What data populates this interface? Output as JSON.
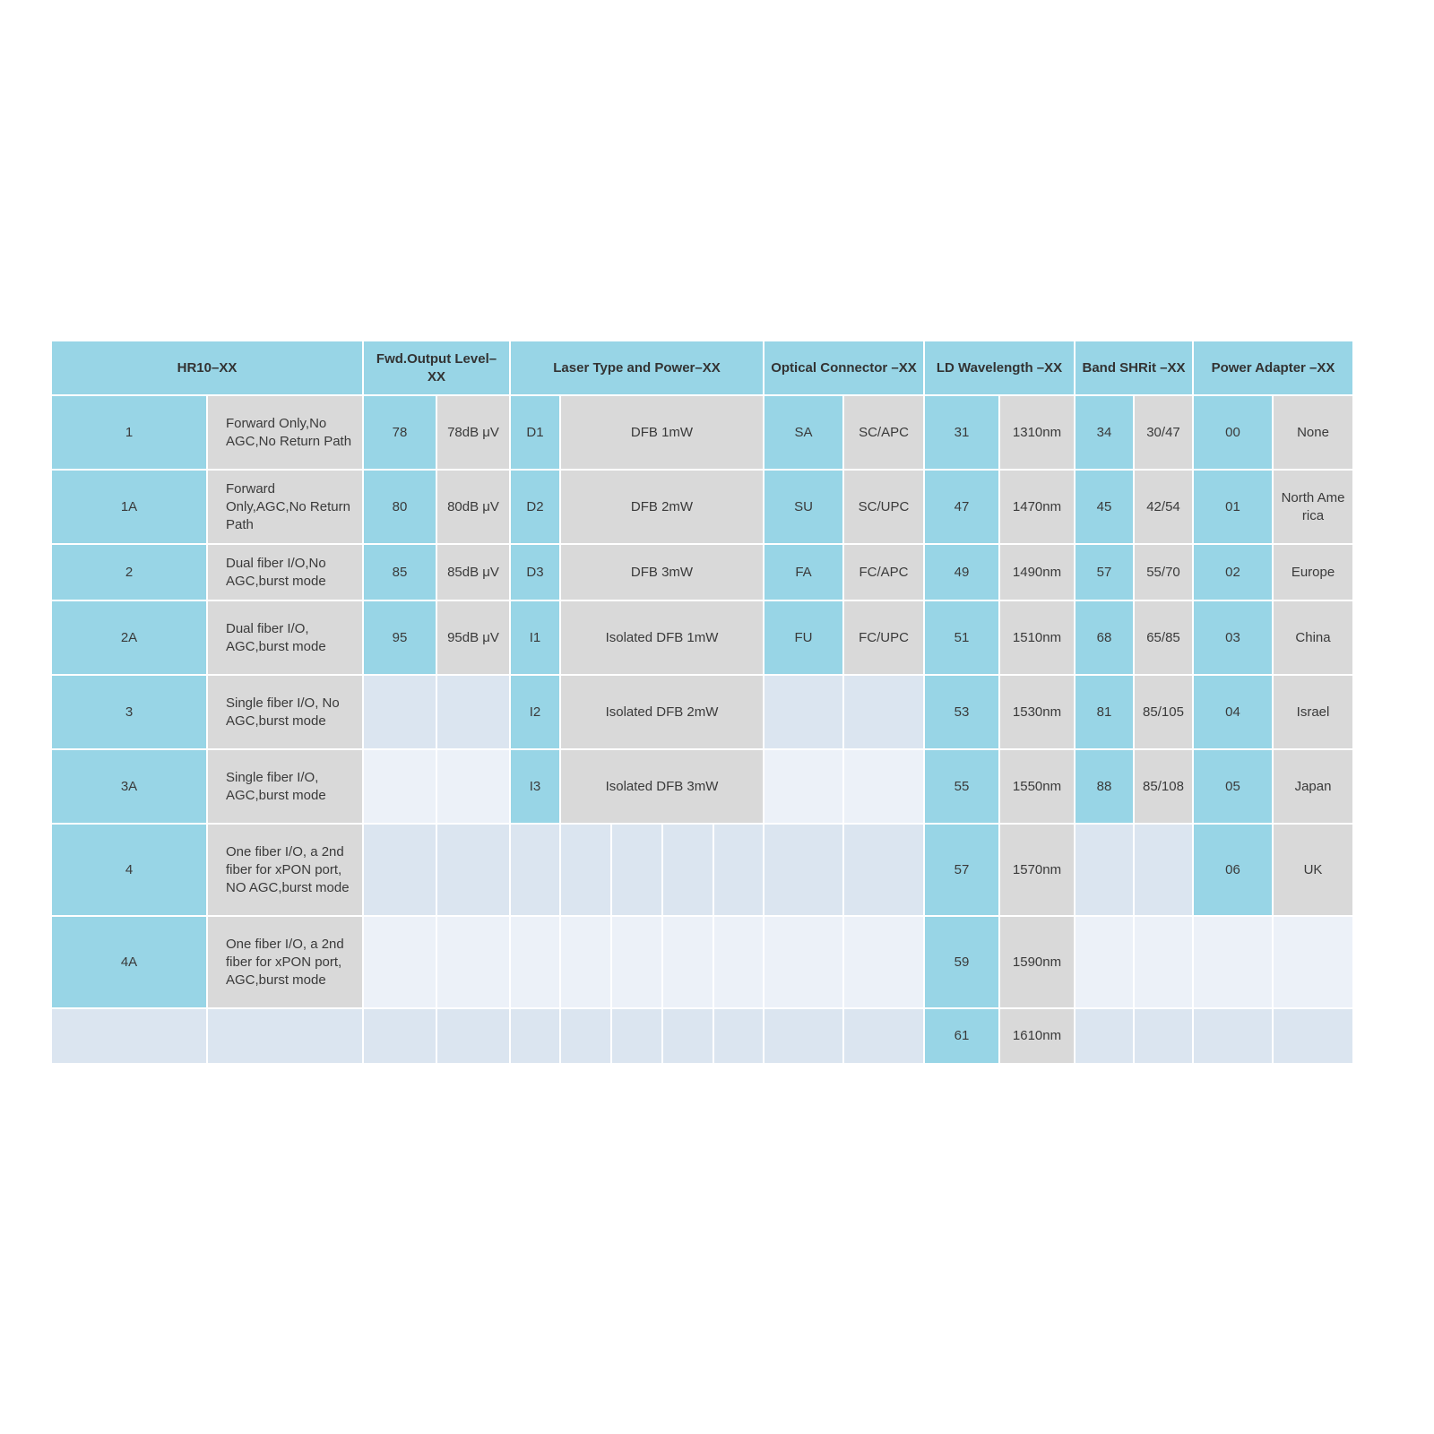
{
  "colors": {
    "header": "#98d5e6",
    "code": "#98d5e6",
    "value": "#d9d9d9",
    "empty_dark": "#dbe5f0",
    "empty_light": "#ecf1f8"
  },
  "headers": [
    "HR10–XX",
    "Fwd.Output Level–XX",
    "Laser Type and Power–XX",
    "Optical Connector –XX",
    "LD Wavelength –XX",
    "Band SHRit –XX",
    "Power Adapter –XX"
  ],
  "rows": [
    {
      "hr": [
        "1",
        "Forward Only,No AGC,No Return Path"
      ],
      "fwd": [
        "78",
        "78dB μV"
      ],
      "laser": [
        "D1",
        "DFB 1mW"
      ],
      "conn": [
        "SA",
        "SC/APC"
      ],
      "ld": [
        "31",
        "1310nm"
      ],
      "band": [
        "34",
        "30/47"
      ],
      "pa": [
        "00",
        "None"
      ]
    },
    {
      "hr": [
        "1A",
        "Forward Only,AGC,No Return Path"
      ],
      "fwd": [
        "80",
        "80dB μV"
      ],
      "laser": [
        "D2",
        "DFB 2mW"
      ],
      "conn": [
        "SU",
        "SC/UPC"
      ],
      "ld": [
        "47",
        "1470nm"
      ],
      "band": [
        "45",
        "42/54"
      ],
      "pa": [
        "01",
        "North America"
      ]
    },
    {
      "hr": [
        "2",
        "Dual fiber I/O,No AGC,burst mode"
      ],
      "fwd": [
        "85",
        "85dB μV"
      ],
      "laser": [
        "D3",
        "DFB 3mW"
      ],
      "conn": [
        "FA",
        "FC/APC"
      ],
      "ld": [
        "49",
        "1490nm"
      ],
      "band": [
        "57",
        "55/70"
      ],
      "pa": [
        "02",
        "Europe"
      ]
    },
    {
      "hr": [
        "2A",
        "Dual fiber I/O, AGC,burst mode"
      ],
      "fwd": [
        "95",
        "95dB μV"
      ],
      "laser": [
        "I1",
        "Isolated DFB 1mW"
      ],
      "conn": [
        "FU",
        "FC/UPC"
      ],
      "ld": [
        "51",
        "1510nm"
      ],
      "band": [
        "68",
        "65/85"
      ],
      "pa": [
        "03",
        "China"
      ]
    },
    {
      "hr": [
        "3",
        "Single fiber I/O, No AGC,burst mode"
      ],
      "fwd": [
        "",
        ""
      ],
      "laser": [
        "I2",
        "Isolated DFB 2mW"
      ],
      "conn": [
        "",
        ""
      ],
      "ld": [
        "53",
        "1530nm"
      ],
      "band": [
        "81",
        "85/105"
      ],
      "pa": [
        "04",
        "Israel"
      ]
    },
    {
      "hr": [
        "3A",
        "Single fiber I/O, AGC,burst mode"
      ],
      "fwd": [
        "",
        ""
      ],
      "laser": [
        "I3",
        "Isolated DFB 3mW"
      ],
      "conn": [
        "",
        ""
      ],
      "ld": [
        "55",
        "1550nm"
      ],
      "band": [
        "88",
        "85/108"
      ],
      "pa": [
        "05",
        "Japan"
      ]
    },
    {
      "hr": [
        "4",
        "One fiber I/O, a 2nd fiber for xPON port, NO AGC,burst mode"
      ],
      "fwd": [
        "",
        ""
      ],
      "laser": [
        "",
        "",
        "",
        "",
        ""
      ],
      "conn": [
        "",
        ""
      ],
      "ld": [
        "57",
        "1570nm"
      ],
      "band": [
        "",
        ""
      ],
      "pa": [
        "06",
        "UK"
      ]
    },
    {
      "hr": [
        "4A",
        "One fiber I/O, a 2nd fiber for xPON port, AGC,burst mode"
      ],
      "fwd": [
        "",
        ""
      ],
      "laser": [
        "",
        "",
        "",
        "",
        ""
      ],
      "conn": [
        "",
        ""
      ],
      "ld": [
        "59",
        "1590nm"
      ],
      "band": [
        "",
        ""
      ],
      "pa": [
        "",
        ""
      ]
    },
    {
      "hr": [
        "",
        ""
      ],
      "fwd": [
        "",
        ""
      ],
      "laser": [
        "",
        "",
        "",
        "",
        ""
      ],
      "conn": [
        "",
        ""
      ],
      "ld": [
        "61",
        "1610nm"
      ],
      "band": [
        "",
        ""
      ],
      "pa": [
        "",
        ""
      ]
    }
  ]
}
